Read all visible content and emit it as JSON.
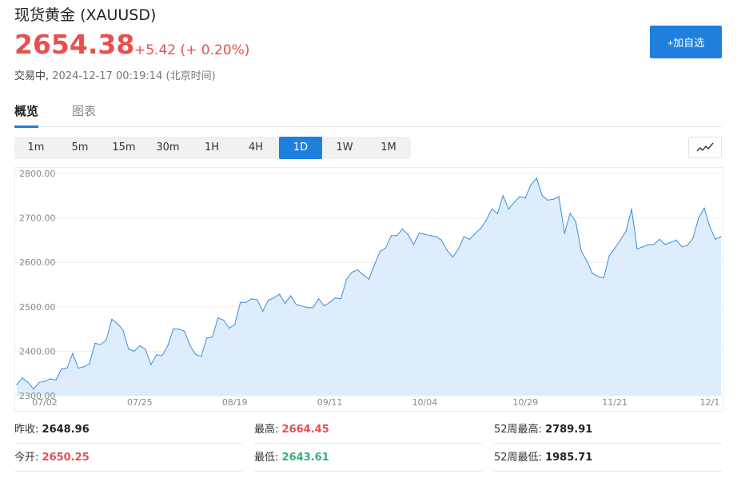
{
  "header": {
    "title": "现货黄金",
    "symbol": "(XAUUSD)",
    "price": "2654.38",
    "change": "+5.42 (+ 0.20%)",
    "status_label": "交易中,",
    "timestamp": "2024-12-17 00:19:14",
    "timezone": "(北京时间)",
    "add_watch_label": "+加自选"
  },
  "colors": {
    "up": "#e84f4f",
    "down": "#2fb07a",
    "accent": "#1f7fde",
    "area_fill": "#ddedfb",
    "line": "#3a8fdf"
  },
  "tabs": [
    {
      "label": "概览",
      "active": true
    },
    {
      "label": "图表",
      "active": false
    }
  ],
  "periods": [
    {
      "label": "1m",
      "active": false
    },
    {
      "label": "5m",
      "active": false
    },
    {
      "label": "15m",
      "active": false
    },
    {
      "label": "30m",
      "active": false
    },
    {
      "label": "1H",
      "active": false
    },
    {
      "label": "4H",
      "active": false
    },
    {
      "label": "1D",
      "active": true
    },
    {
      "label": "1W",
      "active": false
    },
    {
      "label": "1M",
      "active": false
    }
  ],
  "chart_type_icon": "line-chart-icon",
  "chart_data": {
    "type": "area",
    "title": "",
    "xlabel": "",
    "ylabel": "",
    "ylim": [
      2300,
      2800
    ],
    "yticks": [
      "2300.00",
      "2400.00",
      "2500.00",
      "2600.00",
      "2700.00",
      "2800.00"
    ],
    "xticks": [
      {
        "label": "07/02",
        "index": 5
      },
      {
        "label": "07/25",
        "index": 22
      },
      {
        "label": "08/19",
        "index": 39
      },
      {
        "label": "09/11",
        "index": 56
      },
      {
        "label": "10/04",
        "index": 73
      },
      {
        "label": "10/29",
        "index": 91
      },
      {
        "label": "11/21",
        "index": 107
      },
      {
        "label": "12/1",
        "index": 124
      }
    ],
    "series": [
      {
        "values": [
          2325,
          2340,
          2330,
          2315,
          2330,
          2332,
          2338,
          2335,
          2360,
          2362,
          2395,
          2362,
          2365,
          2372,
          2418,
          2415,
          2425,
          2472,
          2462,
          2448,
          2405,
          2400,
          2412,
          2405,
          2370,
          2392,
          2390,
          2412,
          2450,
          2450,
          2445,
          2412,
          2393,
          2388,
          2430,
          2432,
          2475,
          2470,
          2452,
          2460,
          2510,
          2510,
          2518,
          2516,
          2490,
          2515,
          2520,
          2528,
          2508,
          2525,
          2505,
          2502,
          2498,
          2498,
          2518,
          2502,
          2510,
          2520,
          2518,
          2562,
          2578,
          2583,
          2572,
          2562,
          2595,
          2625,
          2632,
          2660,
          2660,
          2675,
          2663,
          2640,
          2666,
          2663,
          2660,
          2658,
          2650,
          2627,
          2612,
          2630,
          2658,
          2652,
          2665,
          2676,
          2695,
          2720,
          2710,
          2750,
          2720,
          2735,
          2748,
          2745,
          2775,
          2789,
          2750,
          2740,
          2742,
          2748,
          2665,
          2710,
          2692,
          2625,
          2603,
          2575,
          2568,
          2565,
          2615,
          2632,
          2650,
          2670,
          2720,
          2630,
          2635,
          2640,
          2640,
          2652,
          2640,
          2645,
          2650,
          2635,
          2638,
          2655,
          2700,
          2722,
          2680,
          2652,
          2658
        ]
      }
    ],
    "grid": true
  },
  "stats": [
    {
      "label": "昨收:",
      "value": "2648.96",
      "tone": "neutral"
    },
    {
      "label": "最高:",
      "value": "2664.45",
      "tone": "up"
    },
    {
      "label": "52周最高:",
      "value": "2789.91",
      "tone": "neutral"
    },
    {
      "label": "今开:",
      "value": "2650.25",
      "tone": "up"
    },
    {
      "label": "最低:",
      "value": "2643.61",
      "tone": "down"
    },
    {
      "label": "52周最低:",
      "value": "1985.71",
      "tone": "neutral"
    }
  ]
}
